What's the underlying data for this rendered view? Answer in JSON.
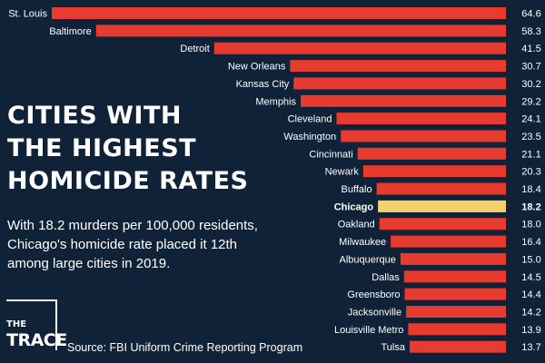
{
  "headline": {
    "line1": "CITIES WITH",
    "line2": "THE HIGHEST",
    "line3": "HOMICIDE RATES"
  },
  "subhead": "With 18.2 murders per 100,000 residents, Chicago's homicide rate placed it 12th among large cities in 2019.",
  "logo": {
    "the": "THE",
    "name": "TRACE"
  },
  "source": "Source: FBI Uniform Crime Reporting Program",
  "colors": {
    "background": "#0f2238",
    "bar": "#e63b2e",
    "highlight": "#f2d16b",
    "text": "#ffffff"
  },
  "chart_data": {
    "type": "bar",
    "orientation": "horizontal",
    "title": "CITIES WITH THE HIGHEST HOMICIDE RATES",
    "categories": [
      "St. Louis",
      "Baltimore",
      "Detroit",
      "New Orleans",
      "Kansas City",
      "Memphis",
      "Cleveland",
      "Washington",
      "Cincinnati",
      "Newark",
      "Buffalo",
      "Chicago",
      "Oakland",
      "Milwaukee",
      "Albuquerque",
      "Dallas",
      "Greensboro",
      "Jacksonville",
      "Louisville Metro",
      "Tulsa"
    ],
    "values": [
      64.6,
      58.3,
      41.5,
      30.7,
      30.2,
      29.2,
      24.1,
      23.5,
      21.1,
      20.3,
      18.4,
      18.2,
      18.0,
      16.4,
      15.0,
      14.5,
      14.4,
      14.2,
      13.9,
      13.7
    ],
    "value_labels": [
      "64.6",
      "58.3",
      "41.5",
      "30.7",
      "30.2",
      "29.2",
      "24.1",
      "23.5",
      "21.1",
      "20.3",
      "18.4",
      "18.2",
      "18.0",
      "16.4",
      "15.0",
      "14.5",
      "14.4",
      "14.2",
      "13.9",
      "13.7"
    ],
    "highlight": "Chicago",
    "xlim": [
      0,
      64.6
    ],
    "grid": false,
    "legend": "none"
  }
}
